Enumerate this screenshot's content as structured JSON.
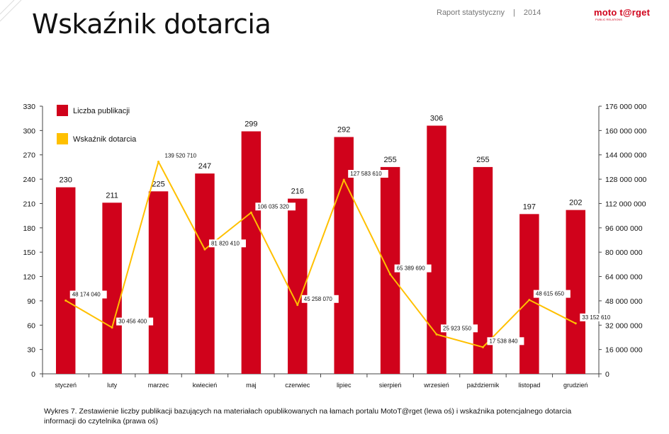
{
  "header": {
    "title": "Wskaźnik dotarcia",
    "report_label": "Raport statystyczny",
    "separator": "|",
    "year": "2014",
    "logo_text": "moto t@rget",
    "logo_sub": "PUBLIC RELATIONS"
  },
  "colors": {
    "bar": "#d0021b",
    "line": "#ffc000",
    "axis": "#444444"
  },
  "chart_data": {
    "type": "bar",
    "categories": [
      "styczeń",
      "luty",
      "marzec",
      "kwiecień",
      "maj",
      "czerwiec",
      "lipiec",
      "sierpień",
      "wrzesień",
      "październik",
      "listopad",
      "grudzień"
    ],
    "series": [
      {
        "name": "Liczba publikacji",
        "type": "bar",
        "axis": "left",
        "values": [
          230,
          211,
          225,
          247,
          299,
          216,
          292,
          255,
          306,
          255,
          197,
          202
        ],
        "labels": [
          "230",
          "211",
          "225",
          "247",
          "299",
          "216",
          "292",
          "255",
          "306",
          "255",
          "197",
          "202"
        ]
      },
      {
        "name": "Wskaźnik dotarcia",
        "type": "line",
        "axis": "right",
        "values": [
          48174040,
          30456400,
          139520710,
          81820410,
          106035320,
          45258070,
          127583610,
          65389690,
          25923550,
          17538840,
          48615650,
          33152610
        ],
        "labels": [
          "48 174 040",
          "30 456 400",
          "139 520 710",
          "81 820 410",
          "106 035 320",
          "45 258 070",
          "127 583 610",
          "65 389 690",
          "25 923 550",
          "17 538 840",
          "48 615 650",
          "33 152 610"
        ]
      }
    ],
    "y_left": {
      "min": 0,
      "max": 330,
      "ticks": [
        "0",
        "30",
        "60",
        "90",
        "120",
        "150",
        "180",
        "210",
        "240",
        "270",
        "300",
        "330"
      ]
    },
    "y_right": {
      "min": 0,
      "max": 176000000,
      "ticks": [
        "0",
        "16 000 000",
        "32 000 000",
        "48 000 000",
        "64 000 000",
        "80 000 000",
        "96 000 000",
        "112 000 000",
        "128 000 000",
        "144 000 000",
        "160 000 000",
        "176 000 000"
      ]
    },
    "legend_position": "top-left",
    "grid": false
  },
  "caption": "Wykres 7. Zestawienie liczby publikacji bazujących na materiałach opublikowanych na łamach portalu MotoT@rget (lewa oś) i wskaźnika potencjalnego dotarcia informacji do czytelnika (prawa oś)"
}
